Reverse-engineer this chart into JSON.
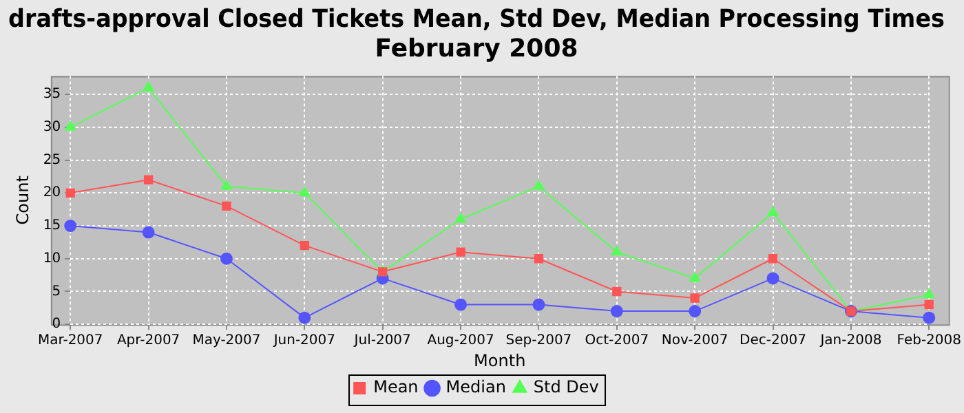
{
  "chart_data": {
    "type": "line",
    "title": "drafts-approval Closed Tickets Mean, Std Dev, Median Processing Times\nFebruary 2008",
    "xlabel": "Month",
    "ylabel": "Count",
    "categories": [
      "Mar-2007",
      "Apr-2007",
      "May-2007",
      "Jun-2007",
      "Jul-2007",
      "Aug-2007",
      "Sep-2007",
      "Oct-2007",
      "Nov-2007",
      "Dec-2007",
      "Jan-2008",
      "Feb-2008"
    ],
    "series": [
      {
        "name": "Mean",
        "color": "#ff5555",
        "marker": "square",
        "values": [
          20,
          22,
          18,
          12,
          8,
          11,
          10,
          5,
          4,
          10,
          2,
          3
        ]
      },
      {
        "name": "Median",
        "color": "#5555ff",
        "marker": "circle",
        "values": [
          15,
          14,
          10,
          1,
          7,
          3,
          3,
          2,
          2,
          7,
          2,
          1
        ]
      },
      {
        "name": "Std Dev",
        "color": "#55ff55",
        "marker": "triangle",
        "values": [
          30,
          36,
          21,
          20,
          8,
          16,
          21,
          11,
          7,
          17,
          2,
          4.5
        ]
      }
    ],
    "ylim": [
      0,
      37.8
    ],
    "yticks": [
      0,
      5,
      10,
      15,
      20,
      25,
      30,
      35
    ],
    "grid": true,
    "legend": "bottom",
    "line_style": "solid"
  }
}
